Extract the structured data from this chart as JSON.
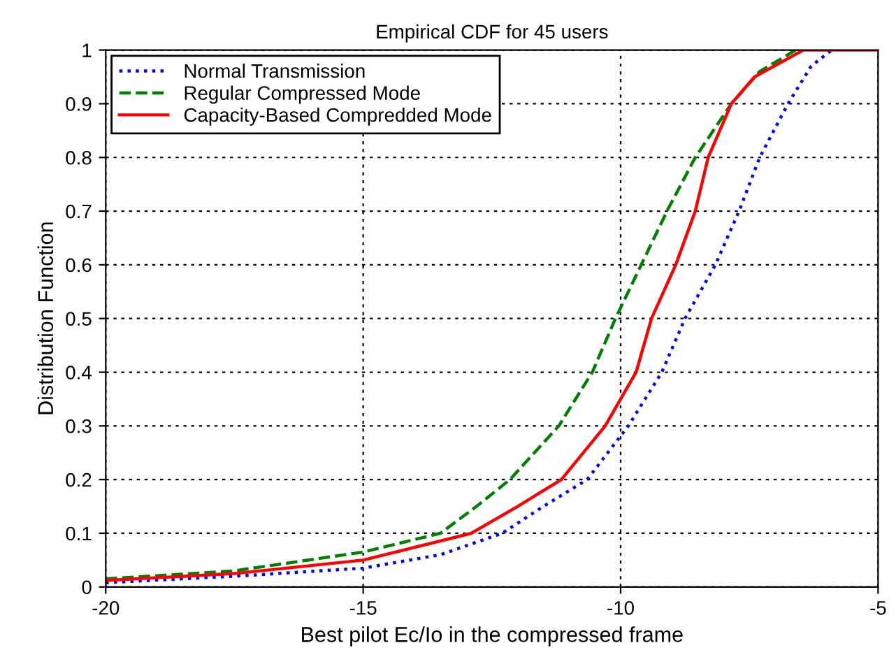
{
  "chart_data": {
    "type": "line",
    "title": "Empirical CDF for 45 users",
    "xlabel": "Best pilot Ec/Io in the compressed frame",
    "ylabel": "Distribution Function",
    "xlim": [
      -20,
      -5
    ],
    "xticks": [
      -20,
      -15,
      -10,
      -5
    ],
    "ylim": [
      0,
      1
    ],
    "yticks": [
      0,
      0.1,
      0.2,
      0.3,
      0.4,
      0.5,
      0.6,
      0.7,
      0.8,
      0.9,
      1
    ],
    "grid": true,
    "legend": "top left",
    "series": [
      {
        "name": "Normal Transmission",
        "color": "#0000ff",
        "line_style": "dotted",
        "x": [
          -20,
          -17.5,
          -15,
          -13.5,
          -12.3,
          -11.5,
          -10.65,
          -9.85,
          -9.2,
          -8.75,
          -8.16,
          -7.7,
          -7.3,
          -6.75,
          -6.3,
          -5.9
        ],
        "values": [
          0.008,
          0.02,
          0.035,
          0.06,
          0.1,
          0.15,
          0.2,
          0.3,
          0.4,
          0.5,
          0.6,
          0.7,
          0.8,
          0.9,
          0.97,
          1
        ]
      },
      {
        "name": "Regular Compressed Mode",
        "color": "#008000",
        "line_style": "dashed",
        "x": [
          -20,
          -17.5,
          -15,
          -13.5,
          -12.8,
          -12.15,
          -11.2,
          -10.55,
          -10.1,
          -9.6,
          -9.1,
          -8.55,
          -8.2,
          -7.85,
          -7.3,
          -6.6
        ],
        "values": [
          0.015,
          0.03,
          0.065,
          0.1,
          0.15,
          0.2,
          0.3,
          0.4,
          0.5,
          0.6,
          0.7,
          0.8,
          0.85,
          0.9,
          0.96,
          1
        ]
      },
      {
        "name": "Capacity-Based Compredded Mode",
        "color": "#ff0000",
        "line_style": "solid",
        "x": [
          -20,
          -17.5,
          -15,
          -12.9,
          -12.0,
          -11.15,
          -10.3,
          -10,
          -9.7,
          -9.4,
          -8.93,
          -8.55,
          -8.3,
          -7.85,
          -7.4,
          -6.45,
          -5
        ],
        "values": [
          0.012,
          0.025,
          0.05,
          0.1,
          0.15,
          0.2,
          0.3,
          0.35,
          0.4,
          0.5,
          0.6,
          0.7,
          0.8,
          0.9,
          0.95,
          1,
          1
        ]
      }
    ]
  }
}
